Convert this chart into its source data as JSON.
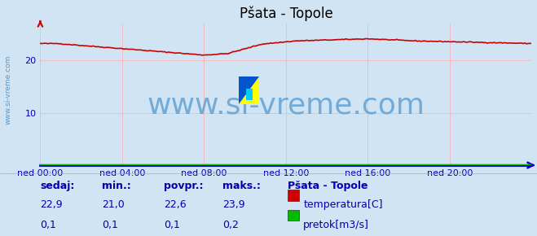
{
  "title": "Pšata - Topole",
  "bg_color": "#d0e4f4",
  "plot_bg_color": "#d0e4f4",
  "grid_color": "#ffaaaa",
  "axis_color": "#0000cc",
  "text_color": "#0000aa",
  "xlim": [
    0,
    288
  ],
  "ylim": [
    0,
    27
  ],
  "yticks": [
    10,
    20
  ],
  "xtick_labels": [
    "ned 00:00",
    "ned 04:00",
    "ned 08:00",
    "ned 12:00",
    "ned 16:00",
    "ned 20:00"
  ],
  "xtick_positions": [
    0,
    48,
    96,
    144,
    192,
    240
  ],
  "temp_color": "#cc0000",
  "flow_color": "#00bb00",
  "watermark": "www.si-vreme.com",
  "watermark_color": "#5599cc",
  "watermark_fontsize": 26,
  "table_headers": [
    "sedaj:",
    "min.:",
    "povpr.:",
    "maks.:"
  ],
  "table_row1": [
    "22,9",
    "21,0",
    "22,6",
    "23,9"
  ],
  "table_row2": [
    "0,1",
    "0,1",
    "0,1",
    "0,2"
  ],
  "legend_title": "Pšata - Topole",
  "legend_items": [
    "temperatura[C]",
    "pretok[m3/s]"
  ],
  "legend_colors": [
    "#cc0000",
    "#00bb00"
  ],
  "title_fontsize": 12,
  "tick_fontsize": 8,
  "table_fontsize": 9,
  "logo_yellow": "#ffff00",
  "logo_blue": "#0055cc",
  "logo_cyan": "#00ccff"
}
